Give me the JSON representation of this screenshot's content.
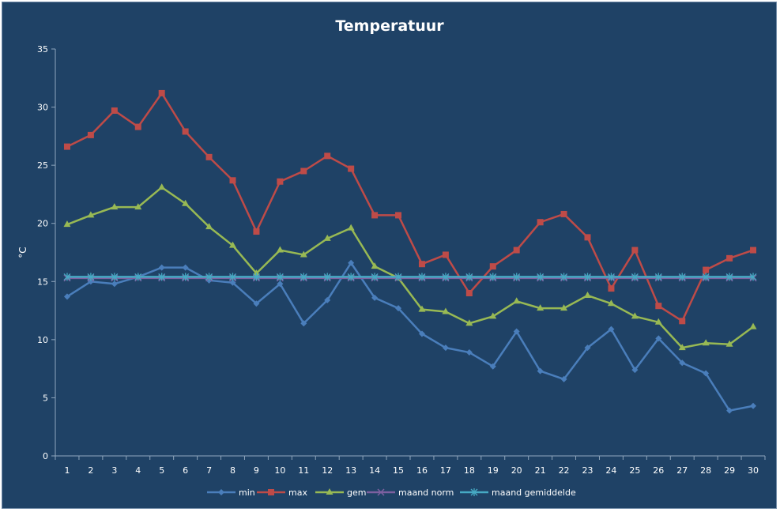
{
  "chart_data": {
    "type": "line",
    "title": "Temperatuur",
    "xlabel": "",
    "ylabel": "°C",
    "ylim": [
      0,
      35
    ],
    "yticks": [
      0,
      5,
      10,
      15,
      20,
      25,
      30,
      35
    ],
    "x": [
      1,
      2,
      3,
      4,
      5,
      6,
      7,
      8,
      9,
      10,
      11,
      12,
      13,
      14,
      15,
      16,
      17,
      18,
      19,
      20,
      21,
      22,
      23,
      24,
      25,
      26,
      27,
      28,
      29,
      30
    ],
    "grid": false,
    "legend_position": "bottom",
    "series": [
      {
        "name": "min",
        "color": "#4a7ebb",
        "marker": "diamond",
        "values": [
          13.7,
          15.0,
          14.8,
          15.4,
          16.2,
          16.2,
          15.1,
          14.9,
          13.1,
          14.8,
          11.4,
          13.4,
          16.6,
          13.6,
          12.7,
          10.5,
          9.3,
          8.9,
          7.7,
          10.7,
          7.3,
          6.6,
          9.3,
          10.9,
          7.4,
          10.1,
          8.0,
          7.1,
          3.9,
          4.3
        ]
      },
      {
        "name": "max",
        "color": "#be4b48",
        "marker": "square",
        "values": [
          26.6,
          27.6,
          29.7,
          28.3,
          31.2,
          27.9,
          25.7,
          23.7,
          19.3,
          23.6,
          24.5,
          25.8,
          24.7,
          20.7,
          20.7,
          16.5,
          17.3,
          14.0,
          16.3,
          17.7,
          20.1,
          20.8,
          18.8,
          14.4,
          17.7,
          12.9,
          11.6,
          16.0,
          17.0,
          17.7
        ]
      },
      {
        "name": "gem",
        "color": "#98b954",
        "marker": "triangle",
        "values": [
          19.9,
          20.7,
          21.4,
          21.4,
          23.1,
          21.7,
          19.7,
          18.1,
          15.7,
          17.7,
          17.3,
          18.7,
          19.6,
          16.3,
          15.3,
          12.6,
          12.4,
          11.4,
          12.0,
          13.3,
          12.7,
          12.7,
          13.8,
          13.1,
          12.0,
          11.5,
          9.3,
          9.7,
          9.6,
          11.1
        ]
      },
      {
        "name": "maand norm",
        "color": "#7d60a0",
        "marker": "x",
        "values": [
          15.3,
          15.3,
          15.3,
          15.3,
          15.3,
          15.3,
          15.3,
          15.3,
          15.3,
          15.3,
          15.3,
          15.3,
          15.3,
          15.3,
          15.3,
          15.3,
          15.3,
          15.3,
          15.3,
          15.3,
          15.3,
          15.3,
          15.3,
          15.3,
          15.3,
          15.3,
          15.3,
          15.3,
          15.3,
          15.3
        ]
      },
      {
        "name": "maand gemiddelde",
        "color": "#46aac4",
        "marker": "star",
        "values": [
          15.4,
          15.4,
          15.4,
          15.4,
          15.4,
          15.4,
          15.4,
          15.4,
          15.4,
          15.4,
          15.4,
          15.4,
          15.4,
          15.4,
          15.4,
          15.4,
          15.4,
          15.4,
          15.4,
          15.4,
          15.4,
          15.4,
          15.4,
          15.4,
          15.4,
          15.4,
          15.4,
          15.4,
          15.4,
          15.4
        ]
      }
    ]
  }
}
